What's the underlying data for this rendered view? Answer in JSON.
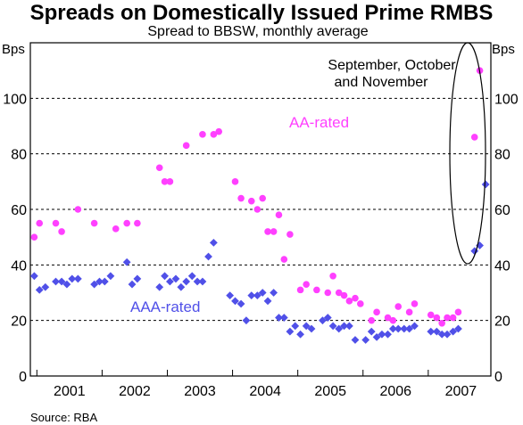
{
  "chart_data": {
    "type": "scatter",
    "title": "Spreads on Domestically Issued Prime RMBS",
    "subtitle": "Spread to BBSW, monthly average",
    "yunit_left": "Bps",
    "yunit_right": "Bps",
    "ylim": [
      0,
      120
    ],
    "yticks": [
      0,
      20,
      40,
      60,
      80,
      100
    ],
    "xlim": [
      2000.9,
      2007.96
    ],
    "xticks": [
      "2001",
      "2002",
      "2003",
      "2004",
      "2005",
      "2006",
      "2007"
    ],
    "source": "Source: RBA",
    "annotation": "September, October and November",
    "annotation_lines": [
      "September, October",
      "and November"
    ],
    "series": [
      {
        "name": "AA-rated",
        "color": "#ff40ff",
        "marker": "circle",
        "points": [
          [
            2000.96,
            50
          ],
          [
            2001.04,
            55
          ],
          [
            2001.29,
            55
          ],
          [
            2001.38,
            52
          ],
          [
            2001.63,
            60
          ],
          [
            2001.88,
            55
          ],
          [
            2002.21,
            53
          ],
          [
            2002.38,
            55
          ],
          [
            2002.54,
            55
          ],
          [
            2002.88,
            75
          ],
          [
            2002.96,
            70
          ],
          [
            2003.04,
            70
          ],
          [
            2003.29,
            83
          ],
          [
            2003.54,
            87
          ],
          [
            2003.71,
            87
          ],
          [
            2003.79,
            88
          ],
          [
            2004.04,
            70
          ],
          [
            2004.13,
            64
          ],
          [
            2004.29,
            63
          ],
          [
            2004.38,
            60
          ],
          [
            2004.46,
            64
          ],
          [
            2004.54,
            52
          ],
          [
            2004.63,
            52
          ],
          [
            2004.71,
            58
          ],
          [
            2004.79,
            42
          ],
          [
            2004.88,
            51
          ],
          [
            2005.04,
            31
          ],
          [
            2005.13,
            33
          ],
          [
            2005.29,
            31
          ],
          [
            2005.46,
            30
          ],
          [
            2005.54,
            36
          ],
          [
            2005.63,
            30
          ],
          [
            2005.71,
            29
          ],
          [
            2005.79,
            27
          ],
          [
            2005.88,
            28
          ],
          [
            2005.96,
            26
          ],
          [
            2006.13,
            20
          ],
          [
            2006.21,
            23
          ],
          [
            2006.38,
            21
          ],
          [
            2006.46,
            20
          ],
          [
            2006.54,
            25
          ],
          [
            2006.71,
            23
          ],
          [
            2006.79,
            26
          ],
          [
            2007.04,
            22
          ],
          [
            2007.13,
            21
          ],
          [
            2007.21,
            19
          ],
          [
            2007.29,
            21
          ],
          [
            2007.38,
            21
          ],
          [
            2007.46,
            23
          ],
          [
            2007.71,
            86
          ],
          [
            2007.79,
            110
          ]
        ]
      },
      {
        "name": "AAA-rated",
        "color": "#5050e8",
        "marker": "diamond",
        "points": [
          [
            2000.96,
            36
          ],
          [
            2001.04,
            31
          ],
          [
            2001.13,
            32
          ],
          [
            2001.29,
            34
          ],
          [
            2001.38,
            34
          ],
          [
            2001.46,
            33
          ],
          [
            2001.54,
            35
          ],
          [
            2001.63,
            35
          ],
          [
            2001.88,
            33
          ],
          [
            2001.96,
            34
          ],
          [
            2002.04,
            34
          ],
          [
            2002.13,
            36
          ],
          [
            2002.38,
            41
          ],
          [
            2002.46,
            33
          ],
          [
            2002.54,
            35
          ],
          [
            2002.88,
            32
          ],
          [
            2002.96,
            36
          ],
          [
            2003.04,
            34
          ],
          [
            2003.13,
            35
          ],
          [
            2003.21,
            32
          ],
          [
            2003.29,
            34
          ],
          [
            2003.38,
            36
          ],
          [
            2003.46,
            34
          ],
          [
            2003.54,
            34
          ],
          [
            2003.63,
            43
          ],
          [
            2003.71,
            48
          ],
          [
            2003.96,
            29
          ],
          [
            2004.04,
            27
          ],
          [
            2004.13,
            26
          ],
          [
            2004.21,
            20
          ],
          [
            2004.29,
            29
          ],
          [
            2004.38,
            29
          ],
          [
            2004.46,
            30
          ],
          [
            2004.54,
            27
          ],
          [
            2004.63,
            30
          ],
          [
            2004.71,
            21
          ],
          [
            2004.79,
            21
          ],
          [
            2004.88,
            16
          ],
          [
            2004.96,
            18
          ],
          [
            2005.04,
            15
          ],
          [
            2005.13,
            18
          ],
          [
            2005.21,
            17
          ],
          [
            2005.38,
            20
          ],
          [
            2005.46,
            21
          ],
          [
            2005.54,
            18
          ],
          [
            2005.63,
            17
          ],
          [
            2005.71,
            18
          ],
          [
            2005.79,
            18
          ],
          [
            2005.88,
            13
          ],
          [
            2006.04,
            13
          ],
          [
            2006.13,
            16
          ],
          [
            2006.21,
            14
          ],
          [
            2006.29,
            15
          ],
          [
            2006.38,
            15
          ],
          [
            2006.46,
            17
          ],
          [
            2006.54,
            17
          ],
          [
            2006.63,
            17
          ],
          [
            2006.71,
            17
          ],
          [
            2006.79,
            18
          ],
          [
            2007.04,
            16
          ],
          [
            2007.13,
            16
          ],
          [
            2007.21,
            15
          ],
          [
            2007.29,
            15
          ],
          [
            2007.38,
            16
          ],
          [
            2007.46,
            17
          ],
          [
            2007.71,
            45
          ],
          [
            2007.79,
            47
          ],
          [
            2007.88,
            69
          ]
        ]
      }
    ],
    "grid": true,
    "legend": "inline labels"
  }
}
